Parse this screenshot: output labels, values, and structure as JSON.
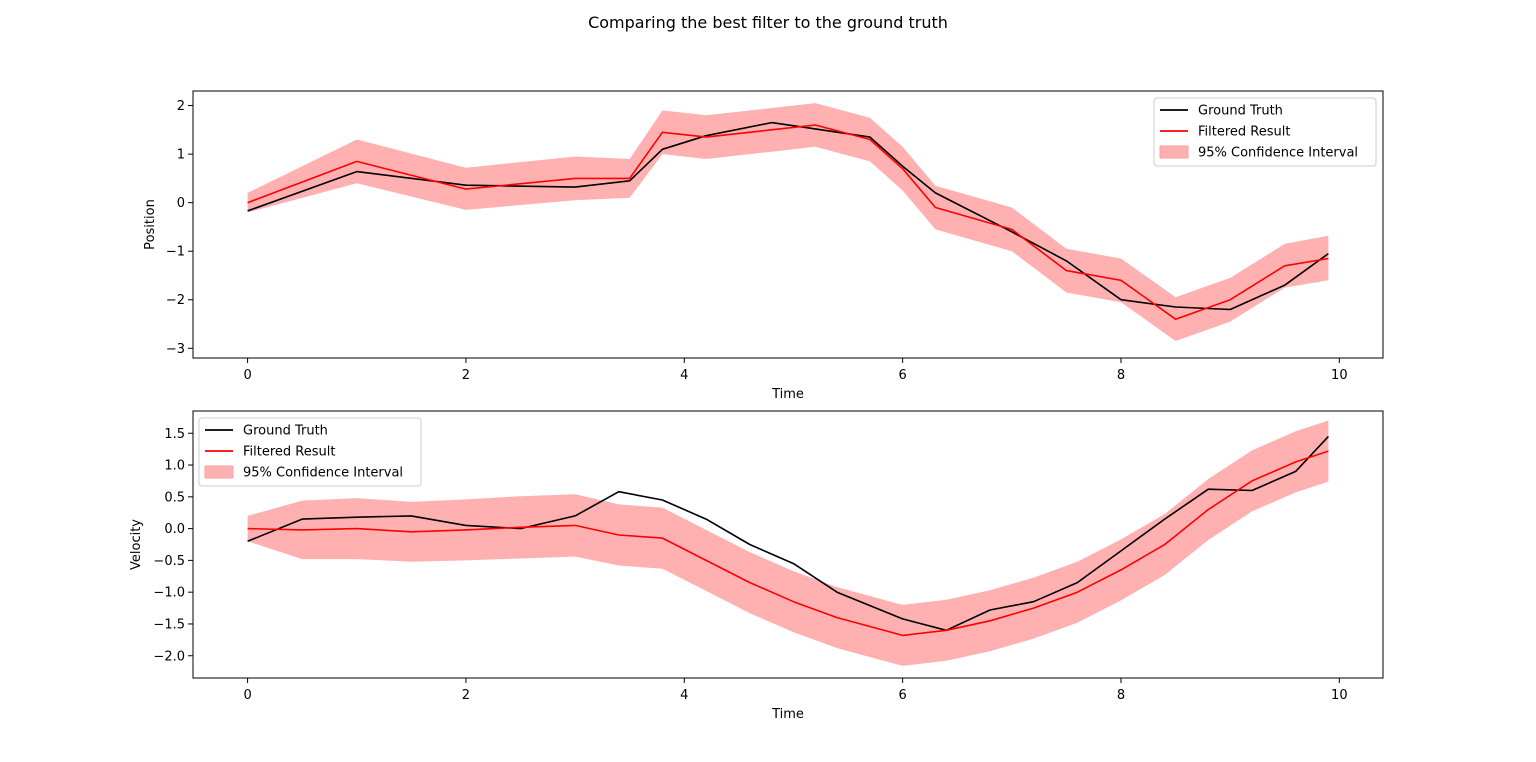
{
  "figure": {
    "title": "Comparing the best filter to the ground truth"
  },
  "colors": {
    "truth": "#000000",
    "filtered": "#ff0000",
    "ci": "#ff9e9e"
  },
  "chart_data": [
    {
      "type": "line",
      "xlabel": "Time",
      "ylabel": "Position",
      "xlim": [
        -0.5,
        10.4
      ],
      "ylim": [
        -3.2,
        2.3
      ],
      "xticks": [
        0,
        2,
        4,
        6,
        8,
        10
      ],
      "xtick_labels": [
        "0",
        "2",
        "4",
        "6",
        "8",
        "10"
      ],
      "yticks": [
        -3,
        -2,
        -1,
        0,
        1,
        2
      ],
      "ytick_labels": [
        "−3",
        "−2",
        "−1",
        "0",
        "1",
        "2"
      ],
      "legend_loc": "upper right",
      "legend": [
        "Ground Truth",
        "Filtered Result",
        "95% Confidence Interval"
      ],
      "x": [
        0,
        1,
        2,
        3,
        3.5,
        3.8,
        4.2,
        4.8,
        5.2,
        5.7,
        6,
        6.3,
        7,
        7.5,
        8,
        8.5,
        9,
        9.5,
        9.9
      ],
      "series": [
        {
          "name": "Ground Truth",
          "values": [
            -0.17,
            0.64,
            0.36,
            0.32,
            0.45,
            1.1,
            1.38,
            1.65,
            1.52,
            1.35,
            0.75,
            0.2,
            -0.6,
            -1.2,
            -2.0,
            -2.15,
            -2.2,
            -1.7,
            -1.05
          ]
        },
        {
          "name": "Filtered Result",
          "values": [
            0.0,
            0.85,
            0.28,
            0.5,
            0.5,
            1.45,
            1.35,
            1.5,
            1.6,
            1.3,
            0.7,
            -0.1,
            -0.55,
            -1.4,
            -1.6,
            -2.4,
            -2.0,
            -1.3,
            -1.15
          ]
        }
      ],
      "ci_lower": [
        -0.2,
        0.4,
        -0.15,
        0.05,
        0.1,
        1.0,
        0.9,
        1.05,
        1.15,
        0.85,
        0.25,
        -0.55,
        -1.0,
        -1.85,
        -2.05,
        -2.85,
        -2.45,
        -1.75,
        -1.6
      ],
      "ci_upper": [
        0.2,
        1.3,
        0.72,
        0.95,
        0.9,
        1.9,
        1.8,
        1.95,
        2.05,
        1.75,
        1.15,
        0.35,
        -0.1,
        -0.95,
        -1.15,
        -1.95,
        -1.55,
        -0.85,
        -0.68
      ]
    },
    {
      "type": "line",
      "xlabel": "Time",
      "ylabel": "Velocity",
      "xlim": [
        -0.5,
        10.4
      ],
      "ylim": [
        -2.35,
        1.85
      ],
      "xticks": [
        0,
        2,
        4,
        6,
        8,
        10
      ],
      "xtick_labels": [
        "0",
        "2",
        "4",
        "6",
        "8",
        "10"
      ],
      "yticks": [
        -2.0,
        -1.5,
        -1.0,
        -0.5,
        0.0,
        0.5,
        1.0,
        1.5
      ],
      "ytick_labels": [
        "−2.0",
        "−1.5",
        "−1.0",
        "−0.5",
        "0.0",
        "0.5",
        "1.0",
        "1.5"
      ],
      "legend_loc": "upper left",
      "legend": [
        "Ground Truth",
        "Filtered Result",
        "95% Confidence Interval"
      ],
      "x": [
        0,
        0.5,
        1,
        1.5,
        2,
        2.5,
        3,
        3.4,
        3.8,
        4.2,
        4.6,
        5,
        5.4,
        6,
        6.4,
        6.8,
        7.2,
        7.6,
        8,
        8.4,
        8.8,
        9.2,
        9.6,
        9.9
      ],
      "series": [
        {
          "name": "Ground Truth",
          "values": [
            -0.2,
            0.15,
            0.18,
            0.2,
            0.05,
            0.0,
            0.2,
            0.58,
            0.45,
            0.15,
            -0.25,
            -0.55,
            -1.0,
            -1.42,
            -1.6,
            -1.28,
            -1.15,
            -0.85,
            -0.35,
            0.15,
            0.62,
            0.6,
            0.9,
            1.45
          ]
        },
        {
          "name": "Filtered Result",
          "values": [
            0.0,
            -0.02,
            0.0,
            -0.05,
            -0.02,
            0.02,
            0.05,
            -0.1,
            -0.15,
            -0.5,
            -0.85,
            -1.15,
            -1.4,
            -1.68,
            -1.6,
            -1.45,
            -1.25,
            -1.0,
            -0.65,
            -0.25,
            0.3,
            0.75,
            1.05,
            1.22
          ]
        }
      ],
      "ci_lower": [
        -0.2,
        -0.48,
        -0.48,
        -0.52,
        -0.5,
        -0.47,
        -0.44,
        -0.58,
        -0.63,
        -0.98,
        -1.33,
        -1.63,
        -1.88,
        -2.16,
        -2.08,
        -1.93,
        -1.73,
        -1.48,
        -1.13,
        -0.73,
        -0.18,
        0.27,
        0.57,
        0.74
      ],
      "ci_upper": [
        0.2,
        0.44,
        0.48,
        0.42,
        0.46,
        0.51,
        0.54,
        0.38,
        0.33,
        -0.02,
        -0.37,
        -0.67,
        -0.92,
        -1.2,
        -1.12,
        -0.97,
        -0.77,
        -0.52,
        -0.17,
        0.23,
        0.78,
        1.23,
        1.53,
        1.7
      ]
    }
  ]
}
